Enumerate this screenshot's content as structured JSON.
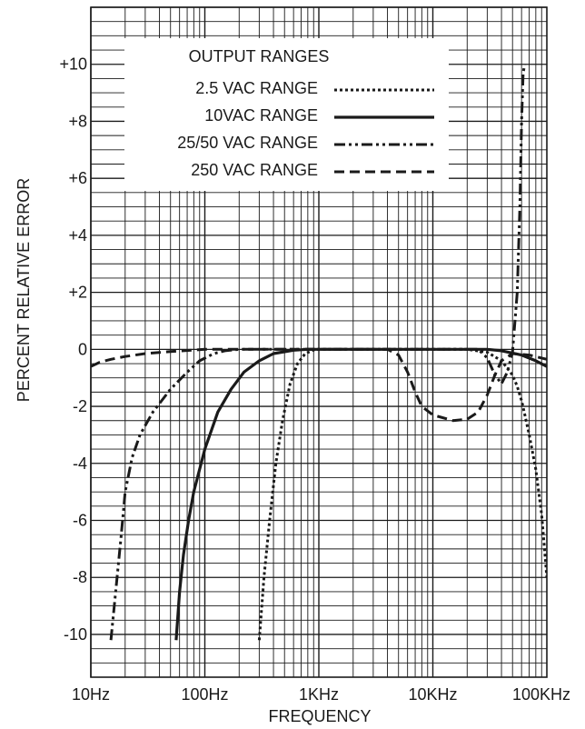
{
  "chart_data": {
    "type": "line",
    "title": "",
    "xlabel": "FREQUENCY",
    "ylabel": "PERCENT RELATIVE ERROR",
    "x_scale": "log",
    "xlim": [
      10,
      100000
    ],
    "ylim": [
      -11.5,
      12.0
    ],
    "x_tick_labels": [
      "10Hz",
      "100Hz",
      "1KHz",
      "10KHz",
      "100KHz"
    ],
    "x_tick_values": [
      10,
      100,
      1000,
      10000,
      100000
    ],
    "y_tick_labels": [
      "+10",
      "+8",
      "+6",
      "+4",
      "+2",
      "0",
      "-2",
      "-4",
      "-6",
      "-8",
      "-10"
    ],
    "y_tick_values": [
      10,
      8,
      6,
      4,
      2,
      0,
      -2,
      -4,
      -6,
      -8,
      -10
    ],
    "y_minor_step": 0.5,
    "grid": true,
    "legend": {
      "title": "OUTPUT RANGES",
      "placement": "top-left"
    },
    "series": [
      {
        "name": "2.5 VAC RANGE",
        "style": "dotted",
        "points": [
          [
            300,
            -10.2
          ],
          [
            330,
            -8.0
          ],
          [
            370,
            -6.0
          ],
          [
            420,
            -4.0
          ],
          [
            480,
            -2.5
          ],
          [
            560,
            -1.2
          ],
          [
            650,
            -0.5
          ],
          [
            760,
            -0.15
          ],
          [
            900,
            -0.02
          ],
          [
            1000,
            0
          ],
          [
            2000,
            0
          ],
          [
            5000,
            0
          ],
          [
            10000,
            0
          ],
          [
            20000,
            0
          ],
          [
            30000,
            -0.1
          ],
          [
            40000,
            -0.4
          ],
          [
            50000,
            -0.9
          ],
          [
            55000,
            -1.3
          ],
          [
            60000,
            -1.8
          ],
          [
            65000,
            -2.4
          ],
          [
            70000,
            -3.0
          ],
          [
            80000,
            -4.2
          ],
          [
            90000,
            -5.8
          ],
          [
            100000,
            -8.0
          ]
        ]
      },
      {
        "name": "10VAC RANGE",
        "style": "solid",
        "points": [
          [
            56,
            -10.2
          ],
          [
            60,
            -8.5
          ],
          [
            65,
            -7.2
          ],
          [
            72,
            -6.0
          ],
          [
            80,
            -5.0
          ],
          [
            100,
            -3.5
          ],
          [
            130,
            -2.2
          ],
          [
            170,
            -1.4
          ],
          [
            220,
            -0.8
          ],
          [
            300,
            -0.4
          ],
          [
            400,
            -0.15
          ],
          [
            600,
            -0.03
          ],
          [
            800,
            0
          ],
          [
            1000,
            0
          ],
          [
            10000,
            0
          ],
          [
            20000,
            0
          ],
          [
            30000,
            0
          ],
          [
            40000,
            -0.05
          ],
          [
            60000,
            -0.2
          ],
          [
            80000,
            -0.4
          ],
          [
            100000,
            -0.6
          ]
        ]
      },
      {
        "name": "25/50 VAC RANGE",
        "style": "dash-dot-dot",
        "points": [
          [
            15,
            -10.2
          ],
          [
            17,
            -8.0
          ],
          [
            18.5,
            -6.5
          ],
          [
            20,
            -5.0
          ],
          [
            23,
            -3.8
          ],
          [
            27,
            -3.0
          ],
          [
            35,
            -2.2
          ],
          [
            50,
            -1.4
          ],
          [
            70,
            -0.8
          ],
          [
            90,
            -0.4
          ],
          [
            120,
            -0.15
          ],
          [
            150,
            -0.05
          ],
          [
            200,
            0
          ],
          [
            1000,
            0
          ],
          [
            10000,
            0
          ],
          [
            25000,
            0
          ],
          [
            30000,
            -0.3
          ],
          [
            35000,
            -0.9
          ],
          [
            40000,
            -1.2
          ],
          [
            45000,
            -0.8
          ],
          [
            50000,
            -0.1
          ],
          [
            55000,
            2.0
          ],
          [
            58000,
            5.0
          ],
          [
            60000,
            8.0
          ],
          [
            62000,
            9.7
          ],
          [
            64000,
            10.0
          ]
        ]
      },
      {
        "name": "250 VAC RANGE",
        "style": "dashed",
        "points": [
          [
            10,
            -0.6
          ],
          [
            12,
            -0.45
          ],
          [
            15,
            -0.35
          ],
          [
            20,
            -0.25
          ],
          [
            30,
            -0.15
          ],
          [
            50,
            -0.08
          ],
          [
            100,
            0
          ],
          [
            1000,
            0
          ],
          [
            4000,
            0
          ],
          [
            5000,
            -0.2
          ],
          [
            6000,
            -0.8
          ],
          [
            7000,
            -1.5
          ],
          [
            8000,
            -2.0
          ],
          [
            10000,
            -2.3
          ],
          [
            15000,
            -2.5
          ],
          [
            20000,
            -2.45
          ],
          [
            25000,
            -2.2
          ],
          [
            30000,
            -1.6
          ],
          [
            35000,
            -0.9
          ],
          [
            40000,
            -0.4
          ],
          [
            50000,
            -0.15
          ],
          [
            70000,
            -0.2
          ],
          [
            100000,
            -0.35
          ]
        ]
      }
    ]
  }
}
